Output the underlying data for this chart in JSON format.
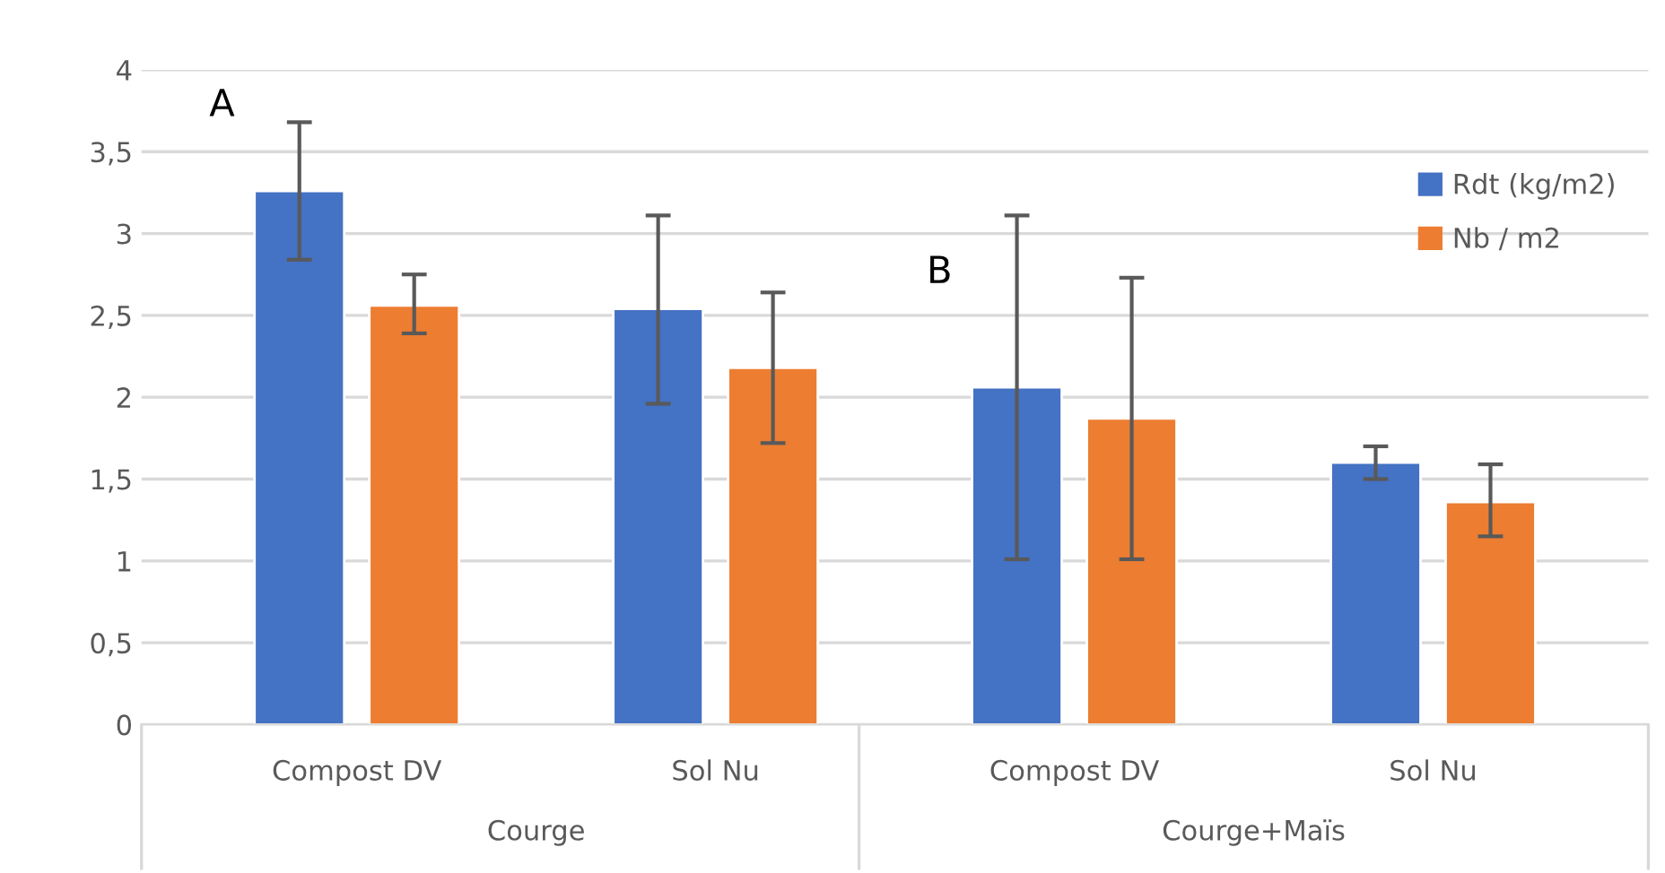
{
  "chart_data": {
    "type": "bar",
    "categories": [
      "Compost DV",
      "Sol Nu",
      "Compost DV",
      "Sol Nu"
    ],
    "series": [
      {
        "name": "Rdt (kg/m2)",
        "color": "#4472c4",
        "values": [
          3.26,
          2.54,
          2.06,
          1.6
        ],
        "errors": [
          [
            2.84,
            3.68
          ],
          [
            1.96,
            3.11
          ],
          [
            1.01,
            3.11
          ],
          [
            1.5,
            1.7
          ]
        ]
      },
      {
        "name": "Nb / m2",
        "color": "#ed7d31",
        "values": [
          2.56,
          2.18,
          1.87,
          1.36
        ],
        "errors": [
          [
            2.39,
            2.75
          ],
          [
            1.72,
            2.64
          ],
          [
            1.01,
            2.73
          ],
          [
            1.15,
            1.59
          ]
        ]
      }
    ],
    "ylim": [
      0,
      4
    ],
    "yticks": [
      {
        "value": 0,
        "label": "0"
      },
      {
        "value": 0.5,
        "label": "0,5"
      },
      {
        "value": 1,
        "label": "1"
      },
      {
        "value": 1.5,
        "label": "1,5"
      },
      {
        "value": 2,
        "label": "2"
      },
      {
        "value": 2.5,
        "label": "2,5"
      },
      {
        "value": 3,
        "label": "3"
      },
      {
        "value": 3.5,
        "label": "3,5"
      },
      {
        "value": 4,
        "label": "4"
      }
    ],
    "grid": "y",
    "legend": "top right",
    "annotations": [
      "A",
      "B",
      "Courge",
      "Courge+Maïs"
    ]
  }
}
